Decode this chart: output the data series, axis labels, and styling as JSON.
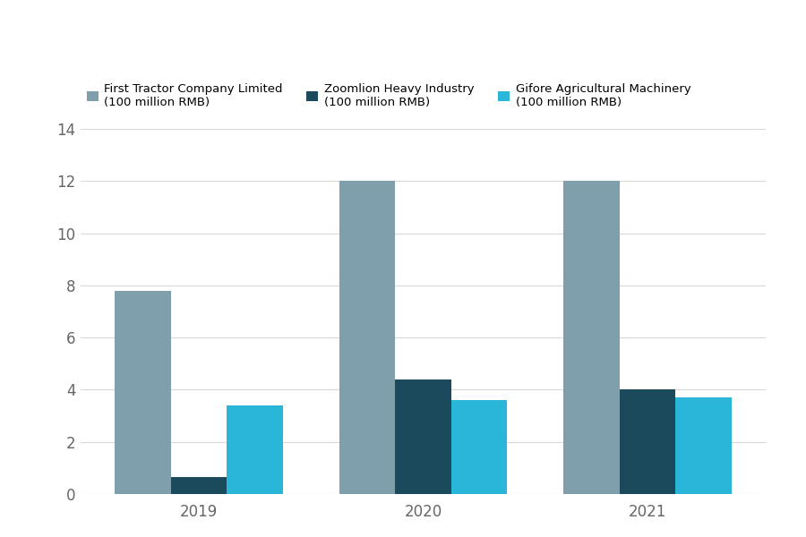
{
  "years": [
    "2019",
    "2020",
    "2021"
  ],
  "series": [
    {
      "label": "First Tractor Company Limited\n(100 million RMB)",
      "values": [
        7.8,
        12.0,
        12.0
      ],
      "color": "#7f9fad"
    },
    {
      "label": "Zoomlion Heavy Industry\n(100 million RMB)",
      "values": [
        0.65,
        4.4,
        4.0
      ],
      "color": "#1a4a5c"
    },
    {
      "label": "Gifore Agricultural Machinery\n(100 million RMB)",
      "values": [
        3.4,
        3.6,
        3.7
      ],
      "color": "#29b6d8"
    }
  ],
  "ylim": [
    0,
    14
  ],
  "yticks": [
    0,
    2,
    4,
    6,
    8,
    10,
    12,
    14
  ],
  "background_color": "#ffffff",
  "grid_color": "#d8d8d8",
  "bar_width": 0.18,
  "group_positions": [
    0.28,
    1.0,
    1.72
  ]
}
